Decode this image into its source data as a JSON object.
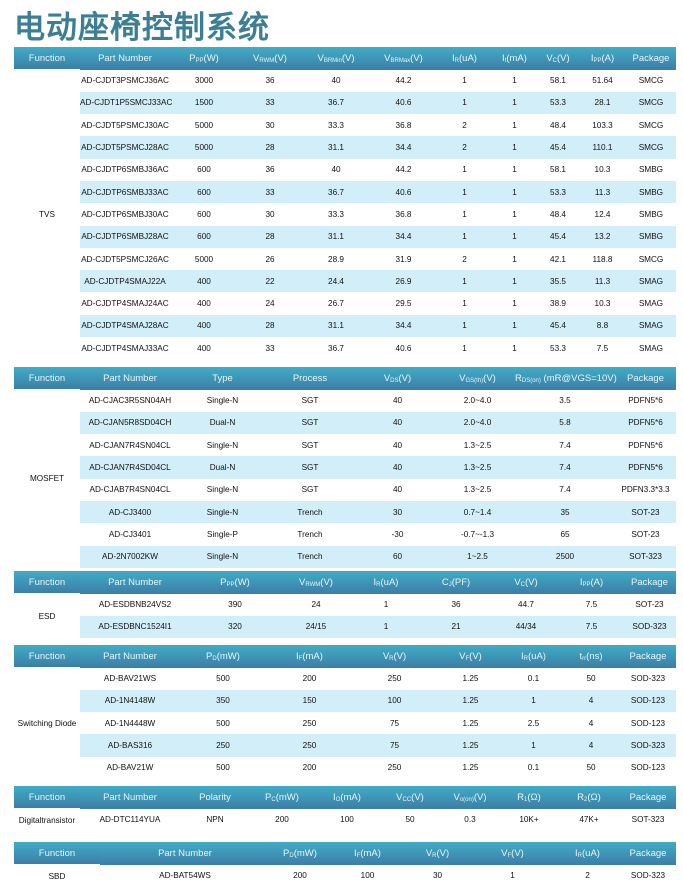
{
  "title": "电动座椅控制系统",
  "colors": {
    "header_top": "#41acc6",
    "header_bottom": "#3c7ea7",
    "row_alt": "#d2eff9",
    "title": "#3c7f94"
  },
  "tables": [
    {
      "function": "TVS",
      "headers": [
        [
          "Function"
        ],
        [
          "Part Number"
        ],
        [
          "P",
          "PP",
          "(W)"
        ],
        [
          "V",
          "RWM",
          "(V)"
        ],
        [
          "V",
          "BRMin",
          "(V)"
        ],
        [
          "V",
          "BRMax",
          "(V)"
        ],
        [
          "I",
          "R",
          "(uA)"
        ],
        [
          "I",
          "t",
          "(mA)"
        ],
        [
          "V",
          "C",
          "(V)"
        ],
        [
          "I",
          "PP",
          "(A)"
        ],
        [
          "Package"
        ]
      ],
      "rows": [
        [
          "AD-CJDT3PSMCJ36AC",
          "3000",
          "36",
          "40",
          "44.2",
          "1",
          "1",
          "58.1",
          "51.64",
          "SMCG"
        ],
        [
          "AD-CJDT1P5SMCJ33AC",
          "1500",
          "33",
          "36.7",
          "40.6",
          "1",
          "1",
          "53.3",
          "28.1",
          "SMCG"
        ],
        [
          "AD-CJDT5PSMCJ30AC",
          "5000",
          "30",
          "33.3",
          "36.8",
          "2",
          "1",
          "48.4",
          "103.3",
          "SMCG"
        ],
        [
          "AD-CJDT5PSMCJ28AC",
          "5000",
          "28",
          "31.1",
          "34.4",
          "2",
          "1",
          "45.4",
          "110.1",
          "SMCG"
        ],
        [
          "AD-CJDTP6SMBJ36AC",
          "600",
          "36",
          "40",
          "44.2",
          "1",
          "1",
          "58.1",
          "10.3",
          "SMBG"
        ],
        [
          "AD-CJDTP6SMBJ33AC",
          "600",
          "33",
          "36.7",
          "40.6",
          "1",
          "1",
          "53.3",
          "11.3",
          "SMBG"
        ],
        [
          "AD-CJDTP6SMBJ30AC",
          "600",
          "30",
          "33.3",
          "36.8",
          "1",
          "1",
          "48.4",
          "12.4",
          "SMBG"
        ],
        [
          "AD-CJDTP6SMBJ28AC",
          "600",
          "28",
          "31.1",
          "34.4",
          "1",
          "1",
          "45.4",
          "13.2",
          "SMBG"
        ],
        [
          "AD-CJDT5PSMCJ26AC",
          "5000",
          "26",
          "28.9",
          "31.9",
          "2",
          "1",
          "42.1",
          "118.8",
          "SMCG"
        ],
        [
          "AD-CJDTP4SMAJ22A",
          "400",
          "22",
          "24.4",
          "26.9",
          "1",
          "1",
          "35.5",
          "11.3",
          "SMAG"
        ],
        [
          "AD-CJDTP4SMAJ24AC",
          "400",
          "24",
          "26.7",
          "29.5",
          "1",
          "1",
          "38.9",
          "10.3",
          "SMAG"
        ],
        [
          "AD-CJDTP4SMAJ28AC",
          "400",
          "28",
          "31.1",
          "34.4",
          "1",
          "1",
          "45.4",
          "8.8",
          "SMAG"
        ],
        [
          "AD-CJDTP4SMAJ33AC",
          "400",
          "33",
          "36.7",
          "40.6",
          "1",
          "1",
          "53.3",
          "7.5",
          "SMAG"
        ]
      ]
    },
    {
      "function": "MOSFET",
      "headers": [
        [
          "Function"
        ],
        [
          "Part Number"
        ],
        [
          "Type"
        ],
        [
          "Process"
        ],
        [
          "V",
          "DS",
          "(V)"
        ],
        [
          "V",
          "GS(th)",
          "(V)"
        ],
        [
          "R",
          "DS(on)",
          "  (mR@VGS=10V)"
        ],
        [
          "Package"
        ]
      ],
      "rows": [
        [
          "AD-CJAC3R5SN04AH",
          "Single-N",
          "SGT",
          "40",
          "2.0~4.0",
          "3.5",
          "PDFN5*6"
        ],
        [
          "AD-CJAN5R8SD04CH",
          "Dual-N",
          "SGT",
          "40",
          "2.0~4.0",
          "5.8",
          "PDFN5*6"
        ],
        [
          "AD-CJAN7R4SN04CL",
          "Single-N",
          "SGT",
          "40",
          "1.3~2.5",
          "7.4",
          "PDFN5*6"
        ],
        [
          "AD-CJAN7R4SD04CL",
          "Dual-N",
          "SGT",
          "40",
          "1.3~2.5",
          "7.4",
          "PDFN5*6"
        ],
        [
          "AD-CJAB7R4SN04CL",
          "Single-N",
          "SGT",
          "40",
          "1.3~2.5",
          "7.4",
          "PDFN3.3*3.3"
        ],
        [
          "AD-CJ3400",
          "Single-N",
          "Trench",
          "30",
          "0.7~1.4",
          "35",
          "SOT-23"
        ],
        [
          "AD-CJ3401",
          "Single-P",
          "Trench",
          "-30",
          "-0.7~-1.3",
          "65",
          "SOT-23"
        ],
        [
          "AD-2N7002KW",
          "Single-N",
          "Trench",
          "60",
          "1~2.5",
          "2500",
          "SOT-323"
        ]
      ]
    },
    {
      "function": "ESD",
      "headers": [
        [
          "Function"
        ],
        [
          "Part Number"
        ],
        [
          "P",
          "PP",
          "(W)"
        ],
        [
          "V",
          "RWM",
          "(V)"
        ],
        [
          "I",
          "R",
          "(uA)"
        ],
        [
          "C",
          "J",
          "(PF)"
        ],
        [
          "V",
          "C",
          "(V)"
        ],
        [
          "I",
          "PP",
          "(A)"
        ],
        [
          "Package"
        ]
      ],
      "rows": [
        [
          "AD-ESDBNB24VS2",
          "390",
          "24",
          "1",
          "36",
          "44.7",
          "7.5",
          "SOT-23"
        ],
        [
          "AD-ESDBNC1524I1",
          "320",
          "24/15",
          "1",
          "21",
          "44/34",
          "7.5",
          "SOD-323"
        ]
      ]
    },
    {
      "function": "Switching Diode",
      "headers": [
        [
          "Function"
        ],
        [
          "Part Number"
        ],
        [
          "P",
          "D",
          "(mW)"
        ],
        [
          "I",
          "F",
          "(mA)"
        ],
        [
          "V",
          "R",
          "(V)"
        ],
        [
          "V",
          "F",
          "(V)"
        ],
        [
          "I",
          "R",
          "(uA)"
        ],
        [
          "t",
          "rr",
          "(ns)"
        ],
        [
          "Package"
        ]
      ],
      "rows": [
        [
          "AD-BAV21WS",
          "500",
          "200",
          "250",
          "1.25",
          "0.1",
          "50",
          "SOD-323"
        ],
        [
          "AD-1N4148W",
          "350",
          "150",
          "100",
          "1.25",
          "1",
          "4",
          "SOD-123"
        ],
        [
          "AD-1N4448W",
          "500",
          "250",
          "75",
          "1.25",
          "2.5",
          "4",
          "SOD-123"
        ],
        [
          "AD-BAS316",
          "250",
          "250",
          "75",
          "1.25",
          "1",
          "4",
          "SOD-323"
        ],
        [
          "AD-BAV21W",
          "500",
          "200",
          "250",
          "1.25",
          "0.1",
          "50",
          "SOD-123"
        ]
      ]
    },
    {
      "function": "Digitaltransistor",
      "headers": [
        [
          "Function"
        ],
        [
          "Part Number"
        ],
        [
          "Polarity"
        ],
        [
          "P",
          "C",
          "(mW)"
        ],
        [
          "I",
          "O",
          "(mA)"
        ],
        [
          "V",
          "CC",
          "(V)"
        ],
        [
          "V",
          "o(on)",
          "(V)"
        ],
        [
          "R",
          "1",
          "(Ω)"
        ],
        [
          "R",
          "2",
          "(Ω)"
        ],
        [
          "Package"
        ]
      ],
      "rows": [
        [
          "AD-DTC114YUA",
          "NPN",
          "200",
          "100",
          "50",
          "0.3",
          "10K+",
          "47K+",
          "SOT-323"
        ]
      ]
    },
    {
      "function": "SBD",
      "headers": [
        [
          "Function"
        ],
        [
          "Part Number"
        ],
        [
          "P",
          "D",
          "(mW)"
        ],
        [
          "I",
          "F",
          "(mA)"
        ],
        [
          "V",
          "R",
          "(V)"
        ],
        [
          "V",
          "F",
          "(V)"
        ],
        [
          "I",
          "R",
          "(uA)"
        ],
        [
          "Package"
        ]
      ],
      "rows": [
        [
          "AD-BAT54WS",
          "200",
          "100",
          "30",
          "1",
          "2",
          "SOD-323"
        ]
      ]
    }
  ]
}
